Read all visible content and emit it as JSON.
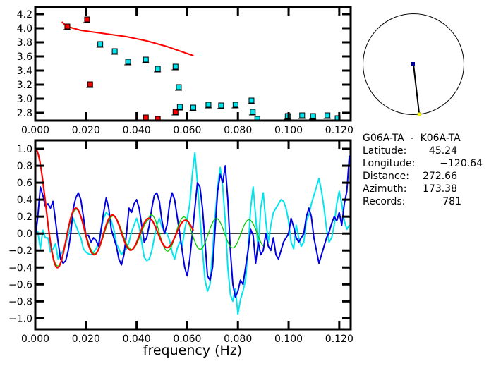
{
  "info_panel": {
    "station_pair": "G06A-TA  -  K06A-TA",
    "rows": [
      {
        "label": "Latitude:",
        "value": "45.24"
      },
      {
        "label": "Longitude:",
        "value": "-120.64"
      },
      {
        "label": "Distance:",
        "value": "272.66"
      },
      {
        "label": "Azimuth:",
        "value": "173.38"
      },
      {
        "label": "Records:",
        "value": "781"
      }
    ]
  },
  "station_map": {
    "azimuth_deg": 173.38,
    "center_marker_color": "#0000a0",
    "end_marker_color": "#ffff00"
  },
  "chart_data": [
    {
      "id": "dispersion",
      "type": "scatter",
      "title": "",
      "xlabel": "",
      "ylabel": "",
      "xlim": [
        0.0,
        0.1245
      ],
      "ylim": [
        2.69,
        4.3
      ],
      "xticks": [
        "0.000",
        "0.020",
        "0.040",
        "0.060",
        "0.080",
        "0.100",
        "0.120"
      ],
      "xtick_values": [
        0.0,
        0.02,
        0.04,
        0.06,
        0.08,
        0.1,
        0.12
      ],
      "yticks": [
        "2.8",
        "3.0",
        "3.2",
        "3.4",
        "3.6",
        "3.8",
        "4.0",
        "4.2"
      ],
      "ytick_values": [
        2.8,
        3.0,
        3.2,
        3.4,
        3.6,
        3.8,
        4.0,
        4.2
      ],
      "grid": false,
      "series": [
        {
          "name": "reference-curve",
          "kind": "line",
          "color": "#ff0000",
          "x": [
            0.0105,
            0.012,
            0.014,
            0.016,
            0.018,
            0.02,
            0.024,
            0.028,
            0.032,
            0.036,
            0.04,
            0.044,
            0.048,
            0.052,
            0.056,
            0.06,
            0.0625
          ],
          "y": [
            4.09,
            4.04,
            4.01,
            3.99,
            3.97,
            3.96,
            3.94,
            3.92,
            3.9,
            3.88,
            3.85,
            3.82,
            3.78,
            3.74,
            3.69,
            3.64,
            3.61
          ]
        },
        {
          "name": "red-points",
          "kind": "points",
          "color": "#ff0000",
          "x": [
            0.0128,
            0.0206,
            0.0218,
            0.0438,
            0.0485,
            0.0555
          ],
          "y": [
            4.02,
            4.12,
            3.2,
            2.73,
            2.71,
            2.81
          ]
        },
        {
          "name": "cyan-points",
          "kind": "points",
          "color": "#00e5ee",
          "x": [
            0.0258,
            0.0315,
            0.0368,
            0.0438,
            0.0485,
            0.0555,
            0.0568,
            0.0572,
            0.0625,
            0.0685,
            0.0735,
            0.0792,
            0.0855,
            0.086,
            0.0878,
            0.0998,
            0.1055,
            0.1098,
            0.1155,
            0.1195
          ],
          "y": [
            3.77,
            3.67,
            3.52,
            3.55,
            3.42,
            3.45,
            3.16,
            2.88,
            2.87,
            2.91,
            2.9,
            2.91,
            2.97,
            2.81,
            2.71,
            2.75,
            2.76,
            2.75,
            2.76,
            2.72
          ]
        }
      ]
    },
    {
      "id": "correlation",
      "type": "line",
      "title": "",
      "xlabel": "frequency (Hz)",
      "ylabel": "",
      "xlim": [
        0.0,
        0.1245
      ],
      "ylim": [
        -1.13,
        1.1
      ],
      "xticks": [
        "0.000",
        "0.020",
        "0.040",
        "0.060",
        "0.080",
        "0.100",
        "0.120"
      ],
      "xtick_values": [
        0.0,
        0.02,
        0.04,
        0.06,
        0.08,
        0.1,
        0.12
      ],
      "yticks": [
        "-1.0",
        "-0.8",
        "-0.6",
        "-0.4",
        "-0.2",
        "0.0",
        "0.2",
        "0.4",
        "0.6",
        "0.8",
        "1.0"
      ],
      "ytick_values": [
        -1.0,
        -0.8,
        -0.6,
        -0.4,
        -0.2,
        0.0,
        0.2,
        0.4,
        0.6,
        0.8,
        1.0
      ],
      "zero_line": true,
      "grid": false,
      "series": [
        {
          "name": "cyan-observed",
          "color": "#00e5ee",
          "x": [
            0.0,
            0.001,
            0.002,
            0.003,
            0.004,
            0.005,
            0.006,
            0.007,
            0.008,
            0.009,
            0.01,
            0.011,
            0.012,
            0.013,
            0.014,
            0.015,
            0.016,
            0.017,
            0.018,
            0.019,
            0.02,
            0.021,
            0.022,
            0.023,
            0.024,
            0.025,
            0.026,
            0.027,
            0.028,
            0.029,
            0.03,
            0.031,
            0.032,
            0.033,
            0.034,
            0.035,
            0.036,
            0.037,
            0.038,
            0.039,
            0.04,
            0.041,
            0.042,
            0.043,
            0.044,
            0.045,
            0.046,
            0.047,
            0.048,
            0.049,
            0.05,
            0.051,
            0.052,
            0.053,
            0.054,
            0.055,
            0.056,
            0.057,
            0.058,
            0.059,
            0.06,
            0.061,
            0.062,
            0.063,
            0.064,
            0.065,
            0.066,
            0.067,
            0.068,
            0.069,
            0.07,
            0.071,
            0.072,
            0.073,
            0.074,
            0.075,
            0.076,
            0.077,
            0.078,
            0.079,
            0.08,
            0.081,
            0.082,
            0.083,
            0.084,
            0.085,
            0.086,
            0.087,
            0.088,
            0.089,
            0.09,
            0.091,
            0.092,
            0.093,
            0.094,
            0.095,
            0.096,
            0.097,
            0.098,
            0.099,
            0.1,
            0.101,
            0.102,
            0.103,
            0.104,
            0.105,
            0.106,
            0.107,
            0.108,
            0.109,
            0.11,
            0.111,
            0.112,
            0.113,
            0.114,
            0.115,
            0.116,
            0.117,
            0.118,
            0.119,
            0.12,
            0.121,
            0.122,
            0.123,
            0.124
          ],
          "y": [
            0.0,
            0.02,
            -0.18,
            0.04,
            -0.05,
            -0.05,
            -0.22,
            -0.18,
            -0.12,
            -0.3,
            -0.25,
            -0.2,
            -0.12,
            -0.02,
            0.08,
            0.18,
            0.1,
            0.02,
            -0.05,
            -0.18,
            -0.22,
            -0.24,
            -0.25,
            -0.22,
            -0.18,
            -0.12,
            0.05,
            0.18,
            0.25,
            0.22,
            0.15,
            0.05,
            -0.12,
            -0.18,
            -0.25,
            -0.2,
            -0.18,
            -0.1,
            0.02,
            0.1,
            0.18,
            0.08,
            -0.1,
            -0.28,
            -0.32,
            -0.3,
            -0.2,
            -0.05,
            0.1,
            0.18,
            0.08,
            0.02,
            0.0,
            -0.08,
            -0.22,
            -0.3,
            -0.18,
            -0.1,
            -0.15,
            0.05,
            0.18,
            0.35,
            0.7,
            0.95,
            0.6,
            0.2,
            -0.2,
            -0.55,
            -0.68,
            -0.6,
            -0.2,
            0.2,
            0.55,
            0.78,
            0.55,
            0.15,
            -0.4,
            -0.72,
            -0.8,
            -0.65,
            -0.95,
            -0.78,
            -0.68,
            -0.55,
            -0.2,
            0.3,
            0.55,
            0.2,
            -0.2,
            0.3,
            0.48,
            0.15,
            -0.1,
            0.1,
            0.25,
            0.3,
            0.35,
            0.4,
            0.38,
            0.3,
            0.15,
            -0.1,
            -0.18,
            0.1,
            -0.05,
            -0.15,
            -0.1,
            0.15,
            0.22,
            0.35,
            0.45,
            0.55,
            0.65,
            0.5,
            0.3,
            0.05,
            -0.1,
            -0.05,
            0.1,
            0.35,
            0.5,
            0.35,
            0.15,
            0.05,
            0.1
          ]
        },
        {
          "name": "blue-observed",
          "color": "#0000e0",
          "x": [
            0.0,
            0.001,
            0.002,
            0.003,
            0.004,
            0.005,
            0.006,
            0.007,
            0.008,
            0.009,
            0.01,
            0.011,
            0.012,
            0.013,
            0.014,
            0.015,
            0.016,
            0.017,
            0.018,
            0.019,
            0.02,
            0.021,
            0.022,
            0.023,
            0.024,
            0.025,
            0.026,
            0.027,
            0.028,
            0.029,
            0.03,
            0.031,
            0.032,
            0.033,
            0.034,
            0.035,
            0.036,
            0.037,
            0.038,
            0.039,
            0.04,
            0.041,
            0.042,
            0.043,
            0.044,
            0.045,
            0.046,
            0.047,
            0.048,
            0.049,
            0.05,
            0.051,
            0.052,
            0.053,
            0.054,
            0.055,
            0.056,
            0.057,
            0.058,
            0.059,
            0.06,
            0.061,
            0.062,
            0.063,
            0.064,
            0.065,
            0.066,
            0.067,
            0.068,
            0.069,
            0.07,
            0.071,
            0.072,
            0.073,
            0.074,
            0.075,
            0.076,
            0.077,
            0.078,
            0.079,
            0.08,
            0.081,
            0.082,
            0.083,
            0.084,
            0.085,
            0.086,
            0.087,
            0.088,
            0.089,
            0.09,
            0.091,
            0.092,
            0.093,
            0.094,
            0.095,
            0.096,
            0.097,
            0.098,
            0.099,
            0.1,
            0.101,
            0.102,
            0.103,
            0.104,
            0.105,
            0.106,
            0.107,
            0.108,
            0.109,
            0.11,
            0.111,
            0.112,
            0.113,
            0.114,
            0.115,
            0.116,
            0.117,
            0.118,
            0.119,
            0.12,
            0.121,
            0.122,
            0.123,
            0.124
          ],
          "y": [
            -0.05,
            0.2,
            0.55,
            0.45,
            0.32,
            0.35,
            0.3,
            0.38,
            0.15,
            -0.1,
            -0.3,
            -0.35,
            -0.32,
            -0.2,
            0.0,
            0.3,
            0.42,
            0.48,
            0.4,
            0.2,
            -0.02,
            -0.02,
            -0.1,
            -0.05,
            -0.08,
            -0.15,
            0.05,
            0.25,
            0.42,
            0.3,
            0.05,
            -0.05,
            -0.15,
            -0.3,
            -0.37,
            -0.25,
            0.0,
            0.3,
            0.25,
            0.35,
            0.4,
            0.3,
            0.1,
            -0.1,
            -0.05,
            0.1,
            0.3,
            0.45,
            0.48,
            0.38,
            0.15,
            0.0,
            0.1,
            0.35,
            0.48,
            0.4,
            0.2,
            0.0,
            -0.2,
            -0.4,
            -0.5,
            -0.3,
            0.0,
            0.3,
            0.6,
            0.55,
            0.3,
            -0.1,
            -0.5,
            -0.55,
            -0.4,
            0.05,
            0.5,
            0.7,
            0.6,
            0.8,
            0.4,
            -0.2,
            -0.6,
            -0.75,
            -0.68,
            -0.55,
            -0.6,
            -0.4,
            -0.2,
            0.05,
            -0.02,
            -0.35,
            -0.1,
            -0.25,
            -0.2,
            0.0,
            -0.15,
            -0.2,
            -0.05,
            -0.25,
            -0.3,
            -0.2,
            -0.1,
            -0.05,
            0.0,
            0.18,
            0.08,
            -0.05,
            -0.1,
            -0.05,
            0.0,
            0.2,
            0.3,
            0.2,
            -0.05,
            -0.2,
            -0.35,
            -0.25,
            -0.15,
            -0.05,
            0.02,
            0.12,
            0.2,
            0.15,
            0.25,
            0.1,
            0.35,
            0.5,
            0.92
          ]
        },
        {
          "name": "green-model",
          "color": "#00cc00",
          "model": {
            "type": "damped-cosine",
            "amplitude_start": 1.0,
            "period": 0.0125,
            "x_end": 0.09
          }
        },
        {
          "name": "red-model",
          "color": "#ff0000",
          "model": {
            "type": "bessel",
            "scale": 1.0,
            "x_end": 0.0625
          }
        }
      ]
    }
  ]
}
